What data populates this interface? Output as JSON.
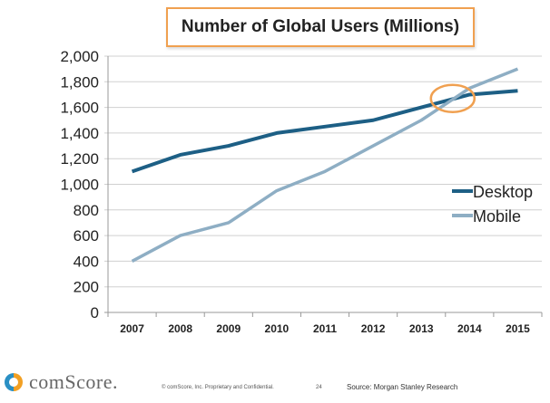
{
  "chart_data": {
    "type": "line",
    "title": "Number of Global Users (Millions)",
    "xlabel": "",
    "ylabel": "",
    "categories": [
      "2007",
      "2008",
      "2009",
      "2010",
      "2011",
      "2012",
      "2013",
      "2014",
      "2015"
    ],
    "ylim": [
      0,
      2000
    ],
    "yticks": [
      "0",
      "200",
      "400",
      "600",
      "800",
      "1,000",
      "1,200",
      "1,400",
      "1,600",
      "1,800",
      "2,000"
    ],
    "grid": true,
    "legend_position": "right",
    "series": [
      {
        "name": "Desktop",
        "color": "#1d5f85",
        "values": [
          1100,
          1230,
          1300,
          1400,
          1450,
          1500,
          1600,
          1700,
          1730
        ]
      },
      {
        "name": "Mobile",
        "color": "#8eaec4",
        "values": [
          400,
          600,
          700,
          950,
          1100,
          1300,
          1500,
          1750,
          1900
        ]
      }
    ],
    "annotation": {
      "shape": "ellipse",
      "color": "#f0a050",
      "x": "2013-2014",
      "y": 1670
    }
  },
  "footer": {
    "logo": "comScore.",
    "copyright": "© comScore, Inc.  Proprietary and Confidential.",
    "page_number": "24",
    "source": "Source: Morgan Stanley Research"
  }
}
